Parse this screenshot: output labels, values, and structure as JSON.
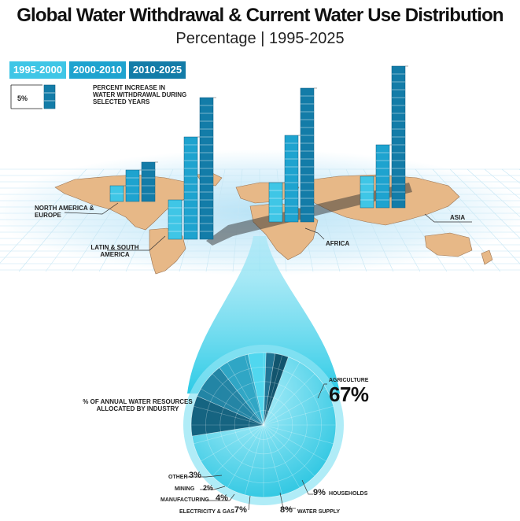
{
  "title": "Global Water Withdrawal & Current Water Use Distribution",
  "subtitle": "Percentage | 1995-2025",
  "legend": {
    "periods": [
      {
        "label": "1995-2000",
        "color": "#3fc6e6"
      },
      {
        "label": "2000-2010",
        "color": "#1ea3cf"
      },
      {
        "label": "2010-2025",
        "color": "#137ca8"
      }
    ],
    "scale_note": "5%",
    "description": "Percent increase in water withdrawal during selected years"
  },
  "regions": {
    "north_america_europe": "NORTH AMERICA & EUROPE",
    "latin_south_america": "LATIN & SOUTH AMERICA",
    "africa": "AFRICA",
    "asia": "ASIA"
  },
  "pie": {
    "caption": "% OF ANNUAL WATER RESOURCES ALLOCATED BY INDUSTRY",
    "slices": [
      {
        "name": "AGRICULTURE",
        "pct": "67%",
        "value": 67,
        "color": "#3fcbe3"
      },
      {
        "name": "HOUSEHOLDS",
        "pct": "9%",
        "value": 9,
        "color": "#105d7a"
      },
      {
        "name": "WATER SUPPLY",
        "pct": "8%",
        "value": 8,
        "color": "#1d7fa0"
      },
      {
        "name": "ELECTRICITY & GAS",
        "pct": "7%",
        "value": 7,
        "color": "#2aa2c2"
      },
      {
        "name": "MANUFACTURING",
        "pct": "4%",
        "value": 4,
        "color": "#4dd6ee"
      },
      {
        "name": "MINING",
        "pct": "2%",
        "value": 2,
        "color": "#1a6e8e"
      },
      {
        "name": "OTHER",
        "pct": "3%",
        "value": 3,
        "color": "#0c4d66"
      }
    ]
  },
  "chart_data": {
    "type": "bar",
    "title": "Global Water Withdrawal & Current Water Use Distribution",
    "subtitle": "Percentage | 1995-2025",
    "categories": [
      "NORTH AMERICA & EUROPE",
      "LATIN & SOUTH AMERICA",
      "AFRICA",
      "ASIA"
    ],
    "series": [
      {
        "name": "1995-2000",
        "values": [
          10,
          25,
          25,
          20
        ]
      },
      {
        "name": "2000-2010",
        "values": [
          20,
          65,
          55,
          40
        ]
      },
      {
        "name": "2010-2025",
        "values": [
          25,
          90,
          85,
          90
        ]
      }
    ],
    "pie": {
      "type": "pie",
      "title": "% OF ANNUAL WATER RESOURCES ALLOCATED BY INDUSTRY",
      "categories": [
        "AGRICULTURE",
        "HOUSEHOLDS",
        "WATER SUPPLY",
        "ELECTRICITY & GAS",
        "MANUFACTURING",
        "MINING",
        "OTHER"
      ],
      "values": [
        67,
        9,
        8,
        7,
        4,
        2,
        3
      ]
    }
  }
}
